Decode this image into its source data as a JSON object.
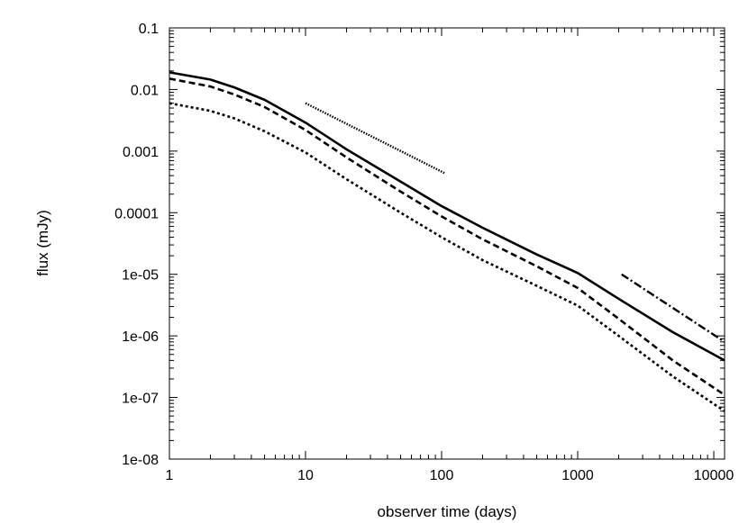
{
  "chart_data": {
    "type": "line",
    "xlabel": "observer time (days)",
    "ylabel": "flux (mJy)",
    "x_scale": "log",
    "y_scale": "log",
    "xlim": [
      1,
      12000
    ],
    "ylim": [
      1e-08,
      0.1
    ],
    "grid": false,
    "x_ticks": [
      {
        "value": 1,
        "label": "1"
      },
      {
        "value": 10,
        "label": "10"
      },
      {
        "value": 100,
        "label": "100"
      },
      {
        "value": 1000,
        "label": "1000"
      },
      {
        "value": 10000,
        "label": "10000"
      }
    ],
    "y_ticks": [
      {
        "value": 0.1,
        "label": "0.1"
      },
      {
        "value": 0.01,
        "label": "0.01"
      },
      {
        "value": 0.001,
        "label": "0.001"
      },
      {
        "value": 0.0001,
        "label": "0.0001"
      },
      {
        "value": 1e-05,
        "label": "1e-05"
      },
      {
        "value": 1e-06,
        "label": "1e-06"
      },
      {
        "value": 1e-07,
        "label": "1e-07"
      },
      {
        "value": 1e-08,
        "label": "1e-08"
      }
    ],
    "series": [
      {
        "style": "solid",
        "color": "#000000",
        "x": [
          1,
          2,
          3,
          5,
          10,
          20,
          50,
          100,
          200,
          500,
          1000,
          2000,
          5000,
          12000
        ],
        "y": [
          0.019,
          0.0145,
          0.0108,
          0.0068,
          0.0029,
          0.00107,
          0.00032,
          0.000128,
          5.7e-05,
          2.1e-05,
          1.05e-05,
          4e-06,
          1.15e-06,
          4e-07
        ]
      },
      {
        "style": "dashed",
        "color": "#000000",
        "x": [
          1,
          2,
          3,
          5,
          10,
          20,
          50,
          100,
          200,
          500,
          1000,
          2000,
          5000,
          12000
        ],
        "y": [
          0.015,
          0.0112,
          0.0083,
          0.0052,
          0.0022,
          0.00079,
          0.00022,
          8.7e-05,
          3.7e-05,
          1.35e-05,
          6e-06,
          1.9e-06,
          4e-07,
          1.1e-07
        ]
      },
      {
        "style": "dotted",
        "color": "#000000",
        "x": [
          1,
          2,
          3,
          5,
          10,
          20,
          50,
          100,
          200,
          500,
          1000,
          2000,
          5000,
          12000
        ],
        "y": [
          0.006,
          0.0045,
          0.0034,
          0.0021,
          0.00095,
          0.00035,
          0.0001,
          4e-05,
          1.7e-05,
          6.5e-06,
          3.1e-06,
          1e-06,
          2.2e-07,
          6e-08
        ]
      },
      {
        "style": "densedot",
        "color": "#000000",
        "x": [
          10,
          105
        ],
        "y": [
          0.006,
          0.00044
        ]
      },
      {
        "style": "dashdot",
        "color": "#000000",
        "x": [
          2100,
          12000
        ],
        "y": [
          1e-05,
          8e-07
        ]
      }
    ]
  }
}
